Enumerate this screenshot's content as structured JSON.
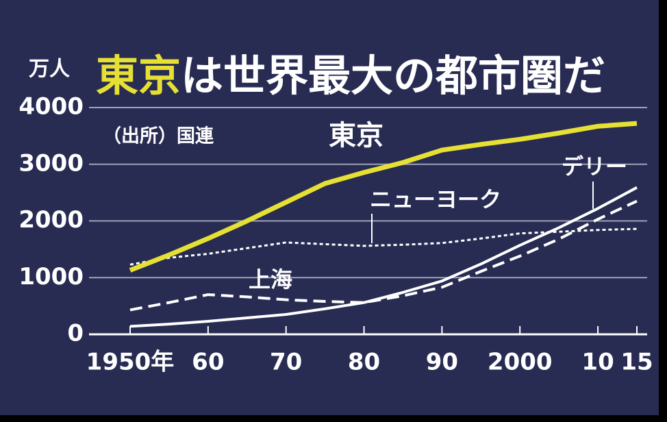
{
  "chart_data": {
    "type": "line",
    "title": [
      "東京",
      "は世界最大の都市圏だ"
    ],
    "y_unit": "万人",
    "source": "（出所）国連",
    "x": [
      1950,
      1955,
      1960,
      1965,
      1970,
      1975,
      1980,
      1985,
      1990,
      1995,
      2000,
      2005,
      2010,
      2015
    ],
    "xlim": [
      1950,
      2015
    ],
    "xticks": [
      {
        "value": 1950,
        "label": "1950年"
      },
      {
        "value": 1960,
        "label": "60"
      },
      {
        "value": 1970,
        "label": "70"
      },
      {
        "value": 1980,
        "label": "80"
      },
      {
        "value": 1990,
        "label": "90"
      },
      {
        "value": 2000,
        "label": "2000"
      },
      {
        "value": 2010,
        "label": "10"
      },
      {
        "value": 2015,
        "label": "15"
      }
    ],
    "ylim": [
      0,
      4000
    ],
    "yticks": [
      0,
      1000,
      2000,
      3000,
      4000
    ],
    "grid": true,
    "series": [
      {
        "name": "東京",
        "color": "#e6e034",
        "values": [
          1130,
          1400,
          1690,
          2000,
          2330,
          2660,
          2855,
          3030,
          3250,
          3350,
          3440,
          3550,
          3670,
          3720
        ]
      },
      {
        "name": "ニューヨーク",
        "color": "#ffffff",
        "values": [
          1230,
          1350,
          1420,
          1520,
          1620,
          1590,
          1560,
          1580,
          1610,
          1690,
          1780,
          1810,
          1840,
          1860
        ]
      },
      {
        "name": "上海",
        "color": "#ffffff",
        "values": [
          430,
          560,
          700,
          660,
          610,
          580,
          560,
          680,
          830,
          1110,
          1380,
          1680,
          2030,
          2350
        ]
      },
      {
        "name": "デリー",
        "color": "#ffffff",
        "values": [
          140,
          180,
          230,
          290,
          350,
          450,
          560,
          740,
          940,
          1240,
          1570,
          1880,
          2220,
          2590
        ]
      }
    ]
  }
}
